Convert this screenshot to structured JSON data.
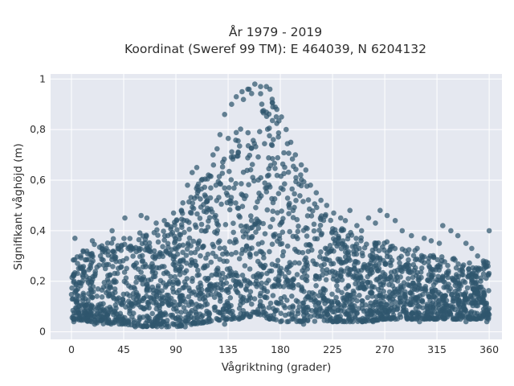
{
  "chart_data": {
    "type": "scatter",
    "title_lines": [
      "År 1979 - 2019",
      "Koordinat (Sweref 99 TM): E 464039, N 6204132"
    ],
    "xlabel": "Vågriktning (grader)",
    "ylabel": "Signifikant våghöjd (m)",
    "xlim": [
      -18,
      371
    ],
    "ylim": [
      -0.03,
      1.02
    ],
    "x_ticks": [
      0,
      45,
      90,
      135,
      180,
      225,
      270,
      315,
      360
    ],
    "x_tick_labels": [
      "0",
      "45",
      "90",
      "135",
      "180",
      "225",
      "270",
      "315",
      "360"
    ],
    "y_ticks": [
      0,
      0.2,
      0.4,
      0.6,
      0.8,
      1
    ],
    "y_tick_labels": [
      "0",
      "0,2",
      "0,4",
      "0,6",
      "0,8",
      "1"
    ],
    "grid": true,
    "colors": {
      "background": "#e5e8f0",
      "marker": "#2f566e",
      "text": "#2e2e2e"
    },
    "envelope": {
      "x": [
        0,
        15,
        30,
        45,
        60,
        75,
        90,
        105,
        120,
        135,
        145,
        150,
        155,
        160,
        165,
        170,
        175,
        180,
        190,
        200,
        210,
        225,
        240,
        255,
        270,
        285,
        300,
        315,
        330,
        345,
        360
      ],
      "y_max": [
        0.28,
        0.34,
        0.36,
        0.38,
        0.4,
        0.42,
        0.45,
        0.55,
        0.68,
        0.82,
        0.9,
        0.95,
        0.97,
        0.98,
        0.97,
        0.96,
        0.9,
        0.82,
        0.7,
        0.6,
        0.52,
        0.44,
        0.4,
        0.37,
        0.36,
        0.33,
        0.32,
        0.3,
        0.29,
        0.27,
        0.28
      ],
      "y_min": [
        0.05,
        0.04,
        0.03,
        0.03,
        0.02,
        0.02,
        0.02,
        0.03,
        0.04,
        0.05,
        0.05,
        0.06,
        0.06,
        0.07,
        0.06,
        0.05,
        0.05,
        0.04,
        0.04,
        0.04,
        0.04,
        0.04,
        0.04,
        0.04,
        0.05,
        0.05,
        0.05,
        0.05,
        0.05,
        0.05,
        0.05
      ]
    },
    "points": [
      [
        3,
        0.37
      ],
      [
        10,
        0.32
      ],
      [
        18,
        0.36
      ],
      [
        25,
        0.3
      ],
      [
        35,
        0.4
      ],
      [
        40,
        0.33
      ],
      [
        46,
        0.45
      ],
      [
        60,
        0.46
      ],
      [
        65,
        0.45
      ],
      [
        73,
        0.43
      ],
      [
        80,
        0.44
      ],
      [
        88,
        0.47
      ],
      [
        96,
        0.51
      ],
      [
        100,
        0.58
      ],
      [
        104,
        0.63
      ],
      [
        108,
        0.65
      ],
      [
        112,
        0.6
      ],
      [
        118,
        0.62
      ],
      [
        122,
        0.7
      ],
      [
        128,
        0.78
      ],
      [
        132,
        0.86
      ],
      [
        138,
        0.9
      ],
      [
        142,
        0.93
      ],
      [
        147,
        0.95
      ],
      [
        152,
        0.96
      ],
      [
        158,
        0.98
      ],
      [
        163,
        0.97
      ],
      [
        168,
        0.97
      ],
      [
        171,
        0.96
      ],
      [
        173,
        0.92
      ],
      [
        177,
        0.88
      ],
      [
        181,
        0.85
      ],
      [
        185,
        0.8
      ],
      [
        189,
        0.75
      ],
      [
        193,
        0.7
      ],
      [
        198,
        0.66
      ],
      [
        202,
        0.64
      ],
      [
        206,
        0.58
      ],
      [
        211,
        0.55
      ],
      [
        215,
        0.52
      ],
      [
        220,
        0.5
      ],
      [
        226,
        0.47
      ],
      [
        232,
        0.45
      ],
      [
        236,
        0.44
      ],
      [
        240,
        0.48
      ],
      [
        246,
        0.42
      ],
      [
        250,
        0.4
      ],
      [
        256,
        0.45
      ],
      [
        262,
        0.43
      ],
      [
        266,
        0.48
      ],
      [
        272,
        0.46
      ],
      [
        279,
        0.44
      ],
      [
        285,
        0.4
      ],
      [
        293,
        0.38
      ],
      [
        298,
        0.33
      ],
      [
        304,
        0.37
      ],
      [
        310,
        0.36
      ],
      [
        317,
        0.35
      ],
      [
        320,
        0.42
      ],
      [
        327,
        0.4
      ],
      [
        333,
        0.38
      ],
      [
        340,
        0.35
      ],
      [
        345,
        0.33
      ],
      [
        350,
        0.3
      ],
      [
        355,
        0.28
      ],
      [
        359,
        0.26
      ],
      [
        360,
        0.4
      ],
      [
        2,
        0.04
      ],
      [
        20,
        0.03
      ],
      [
        55,
        0.02
      ],
      [
        98,
        0.02
      ],
      [
        200,
        0.03
      ],
      [
        260,
        0.04
      ],
      [
        300,
        0.04
      ],
      [
        340,
        0.04
      ],
      [
        358,
        0.04
      ],
      [
        132,
        0.03
      ],
      [
        82,
        0.02
      ]
    ],
    "point_count": 2600
  }
}
